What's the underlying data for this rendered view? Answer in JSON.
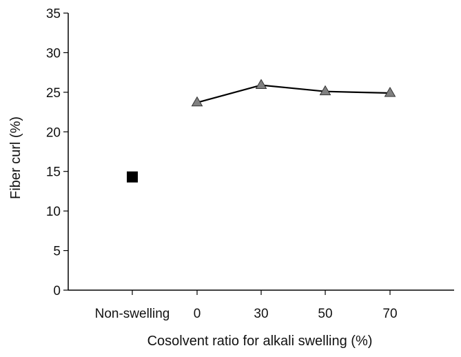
{
  "chart_data": {
    "type": "scatter",
    "title": "",
    "xlabel": "Cosolvent ratio for alkali swelling (%)",
    "ylabel": "Fiber curl (%)",
    "categories": [
      "Non-swelling",
      "0",
      "30",
      "50",
      "70"
    ],
    "ylim": [
      0,
      35
    ],
    "yticks": [
      0,
      5,
      10,
      15,
      20,
      25,
      30,
      35
    ],
    "grid": false,
    "series": [
      {
        "name": "Non-swelling",
        "marker": "square",
        "color": "#000000",
        "connected": false,
        "points": [
          {
            "category": "Non-swelling",
            "value": 14.3
          }
        ]
      },
      {
        "name": "Cosolvent ratio",
        "marker": "triangle",
        "color": "#808080",
        "line_color": "#000000",
        "connected": true,
        "points": [
          {
            "category": "0",
            "value": 23.7
          },
          {
            "category": "30",
            "value": 25.9
          },
          {
            "category": "50",
            "value": 25.1
          },
          {
            "category": "70",
            "value": 24.9
          }
        ]
      }
    ]
  }
}
